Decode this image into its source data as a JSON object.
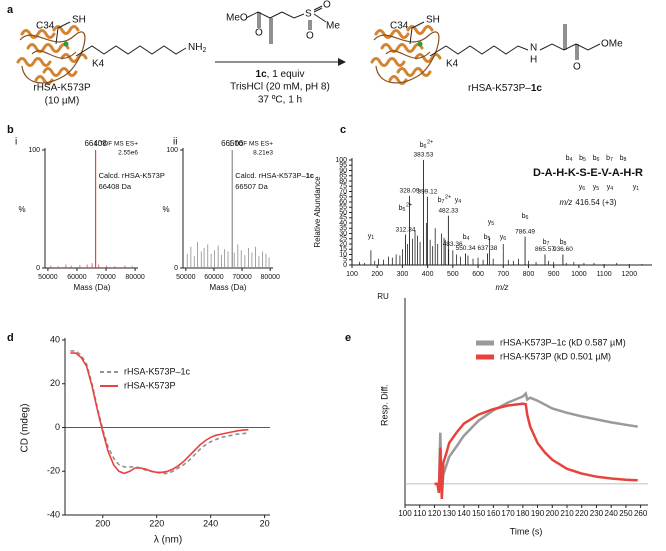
{
  "scheme": {
    "panel": "a",
    "thiol_site": "C34",
    "thiol": "SH",
    "lysine_site": "K4",
    "amine": "NH",
    "amine_subscript": "2",
    "reactant_name": "rHSA-K573P",
    "reactant_conc": "(10 µM)",
    "reagent_methoxy": "MeO",
    "reagent_carbonyl_o": "O",
    "reagent_sulfur": "S",
    "reagent_sulfonyl_o1": "O",
    "reagent_sulfonyl_o2": "O",
    "reagent_methyl": "Me",
    "reagent_name": "1c",
    "reagent_amount": ", 1 equiv",
    "buffer": "TrisHCl (20 mM, pH 8)",
    "conditions": "37 ºC, 1 h",
    "product_thiol_site": "C34",
    "product_thiol": "SH",
    "product_lysine_site": "K4",
    "product_n": "N",
    "product_h": "H",
    "product_carbonyl_o": "O",
    "product_methoxy": "OMe",
    "product_name": "rHSA-K573P–",
    "product_name_bold": "1c"
  },
  "chart_data": [
    {
      "type": "stem",
      "panel": "b",
      "subpanel": "i",
      "color": "#e8423c",
      "x": [
        51000,
        53500,
        56200,
        58000,
        61000,
        63500,
        65200,
        67500,
        70200,
        73000,
        76500,
        79000
      ],
      "values": [
        2,
        1.5,
        3,
        2,
        2.5,
        3,
        4,
        3,
        2,
        1.5,
        2,
        1.5
      ],
      "labeled_peak": {
        "x": 66408,
        "value": 100
      },
      "annotation_color": "#e8423c",
      "scan": "1:TOF MS ES+",
      "intensity": "2.55e6",
      "calc_name": "Calcd. rHSA-K573P",
      "calc_mass": "66408 Da",
      "xlim": [
        49000,
        81000
      ],
      "xticks": [
        50000,
        60000,
        70000,
        80000
      ],
      "ylim": [
        0,
        100
      ],
      "yticks": [
        0,
        100
      ],
      "xlabel": "Mass (Da)",
      "ylabel": "%"
    },
    {
      "type": "stem",
      "subpanel": "ii",
      "color": "#8c8c8c",
      "x": [
        50500,
        51800,
        53000,
        54200,
        55500,
        56500,
        57800,
        59000,
        60200,
        61500,
        62700,
        63800,
        65000,
        67200,
        68500,
        69700,
        71000,
        72300,
        73500,
        74800,
        76000,
        77300,
        78500,
        79600
      ],
      "values": [
        12,
        18,
        10,
        22,
        14,
        17,
        20,
        12,
        15,
        19,
        11,
        16,
        14,
        13,
        20,
        15,
        11,
        17,
        13,
        18,
        10,
        14,
        12,
        9
      ],
      "labeled_peak": {
        "x": 66506,
        "value": 100
      },
      "annotation_color": "#e8423c",
      "scan": "1:TOF MS ES+",
      "intensity": "8.21e3",
      "calc_name": "Calcd. rHSA-K573P–",
      "calc_name_bold": "1c",
      "calc_mass": "66507 Da",
      "xlim": [
        49000,
        81000
      ],
      "xticks": [
        50000,
        60000,
        70000,
        80000
      ],
      "ylim": [
        0,
        100
      ],
      "yticks": [
        0,
        100
      ],
      "xlabel": "Mass (Da)",
      "ylabel": "%"
    },
    {
      "type": "stem",
      "panel": "c",
      "color": "#222222",
      "x": [
        130,
        150,
        175,
        190,
        205,
        225,
        245,
        260,
        275,
        290,
        300,
        320,
        340,
        350,
        360,
        370,
        395,
        410,
        420,
        430,
        440,
        455,
        465,
        470,
        500,
        515,
        530,
        560,
        580,
        600,
        620,
        645,
        660,
        700,
        720,
        740,
        760,
        800,
        830,
        880,
        900,
        950,
        980,
        1020,
        1060,
        1100,
        1150,
        1200,
        1250
      ],
      "values": [
        3,
        2,
        14,
        4,
        6,
        5,
        8,
        7,
        10,
        9,
        15,
        20,
        25,
        33,
        28,
        22,
        40,
        24,
        18,
        35,
        20,
        30,
        26,
        24,
        14,
        10,
        8,
        9,
        6,
        7,
        5,
        26,
        6,
        20,
        5,
        4,
        6,
        4,
        3,
        4,
        3,
        2,
        3,
        2,
        2,
        1,
        2,
        1,
        1
      ],
      "labeled_peaks": {
        "x": [
          312.34,
          328.09,
          383.53,
          399.12,
          482.33,
          483.36,
          550.34,
          637.38,
          786.49,
          865.57,
          936.6
        ],
        "x_labels": [
          "312.34",
          "328.09",
          "383.53",
          "399.12",
          "482.33",
          "483.36",
          "550.34",
          "637.38",
          "786.49",
          "865.57",
          "936.60"
        ],
        "values": [
          29,
          66,
          100,
          65,
          47,
          15,
          11,
          11,
          27,
          10,
          10
        ]
      },
      "ion_colors": {
        "b": "#2f5597",
        "y": "#e8423c"
      },
      "ion_labels": [
        {
          "ion": "y1"
        },
        {
          "ion": "b5",
          "charge": "2+"
        },
        {
          "ion": "b6",
          "charge": "2+"
        },
        {
          "ion": "b7",
          "charge": "2+"
        },
        {
          "ion": "y4"
        },
        {
          "ion": "b4"
        },
        {
          "ion": "b5"
        },
        {
          "ion": "y5"
        },
        {
          "ion": "y6"
        },
        {
          "ion": "b6"
        },
        {
          "ion": "b7"
        },
        {
          "ion": "b8"
        }
      ],
      "sequence": "D-A-H-K-S-E-V-A-H-R",
      "sequence_b_ions": [
        "b4",
        "b5",
        "b6",
        "b7",
        "b8"
      ],
      "sequence_y_ions": [
        "y6",
        "y5",
        "y4",
        "y1"
      ],
      "precursor_label": "m/z",
      "precursor": "416.54 (+3)",
      "xlim": [
        100,
        1290
      ],
      "xticks": [
        100,
        200,
        300,
        400,
        500,
        600,
        700,
        800,
        900,
        1000,
        1100,
        1200
      ],
      "ylim": [
        0,
        100
      ],
      "yticks": [
        0,
        5,
        10,
        15,
        20,
        25,
        30,
        35,
        40,
        45,
        50,
        55,
        60,
        65,
        70,
        75,
        80,
        85,
        90,
        95,
        100
      ],
      "xlabel": "m/z",
      "ylabel": "Relative Abundance"
    },
    {
      "type": "line",
      "panel": "d",
      "x": [
        188,
        190,
        192,
        194,
        196,
        198,
        200,
        202,
        204,
        206,
        208,
        210,
        212,
        214,
        216,
        218,
        220,
        222,
        224,
        226,
        228,
        230,
        232,
        234,
        236,
        238,
        240,
        242,
        244,
        246,
        248,
        250,
        252,
        254
      ],
      "series": [
        {
          "name": "rHSA-K573P–1c",
          "color": "#8f8f9a",
          "style": "dashed",
          "values": [
            35,
            35,
            33,
            29,
            20,
            9,
            -1,
            -9,
            -14,
            -17,
            -18,
            -18,
            -18,
            -18.5,
            -19.5,
            -20,
            -20.5,
            -21,
            -21,
            -20,
            -18.5,
            -17,
            -15,
            -12.5,
            -10,
            -8,
            -6.5,
            -5.5,
            -4.5,
            -4,
            -3.5,
            -3,
            -2.8,
            -2.5
          ]
        },
        {
          "name": "rHSA-K573P",
          "color": "#e8423c",
          "style": "solid",
          "values": [
            34,
            34,
            32,
            28,
            19,
            8,
            -2,
            -11,
            -17,
            -20,
            -21,
            -20,
            -18.5,
            -18.5,
            -19,
            -20,
            -20.5,
            -20.5,
            -20,
            -19,
            -17.5,
            -15.5,
            -13,
            -10.5,
            -8,
            -6,
            -4.5,
            -3.5,
            -3,
            -2.5,
            -2,
            -1.5,
            -1.2,
            -1
          ]
        }
      ],
      "xlim": [
        186,
        262
      ],
      "xticks": [
        200,
        220,
        240,
        {
          "value": 260,
          "label": "20"
        }
      ],
      "ylim": [
        -40,
        40
      ],
      "yticks": [
        -40,
        -20,
        0,
        20,
        40
      ],
      "xlabel": "λ (nm)",
      "ylabel": "CD (mdeg)"
    },
    {
      "type": "line",
      "panel": "e",
      "series": [
        {
          "name": "rHSA-K573P–1c (kD 0.587 µM)",
          "color": "#9a9a9a",
          "style": "solid",
          "x": [
            120,
            122,
            123,
            124,
            125,
            126,
            128,
            130,
            135,
            140,
            150,
            160,
            170,
            180,
            182,
            183,
            185,
            190,
            200,
            210,
            220,
            230,
            240,
            250,
            258
          ],
          "values": [
            0,
            0,
            -10,
            85,
            -20,
            15,
            30,
            45,
            62,
            80,
            105,
            122,
            135,
            145,
            150,
            140,
            143,
            138,
            125,
            118,
            112,
            107,
            102,
            98,
            95
          ]
        },
        {
          "name": "rHSA-K573P (kD 0.501 µM)",
          "color": "#e8423c",
          "style": "solid",
          "x": [
            120,
            122,
            123,
            124,
            125,
            126,
            128,
            130,
            135,
            140,
            150,
            160,
            170,
            180,
            182,
            183,
            185,
            190,
            195,
            200,
            210,
            220,
            230,
            240,
            250,
            258
          ],
          "values": [
            0,
            0,
            -15,
            60,
            -25,
            35,
            50,
            68,
            85,
            100,
            115,
            124,
            130,
            133,
            132,
            115,
            95,
            68,
            52,
            40,
            25,
            17,
            12,
            9,
            7,
            6
          ]
        }
      ],
      "xlim": [
        100,
        265
      ],
      "xticks": [
        100,
        110,
        120,
        130,
        140,
        150,
        160,
        170,
        180,
        190,
        200,
        210,
        220,
        230,
        240,
        250,
        260
      ],
      "ylim": [
        -35,
        305
      ],
      "yunit": "RU",
      "xlabel": "Time (s)",
      "ylabel": "Resp. Diff."
    }
  ]
}
